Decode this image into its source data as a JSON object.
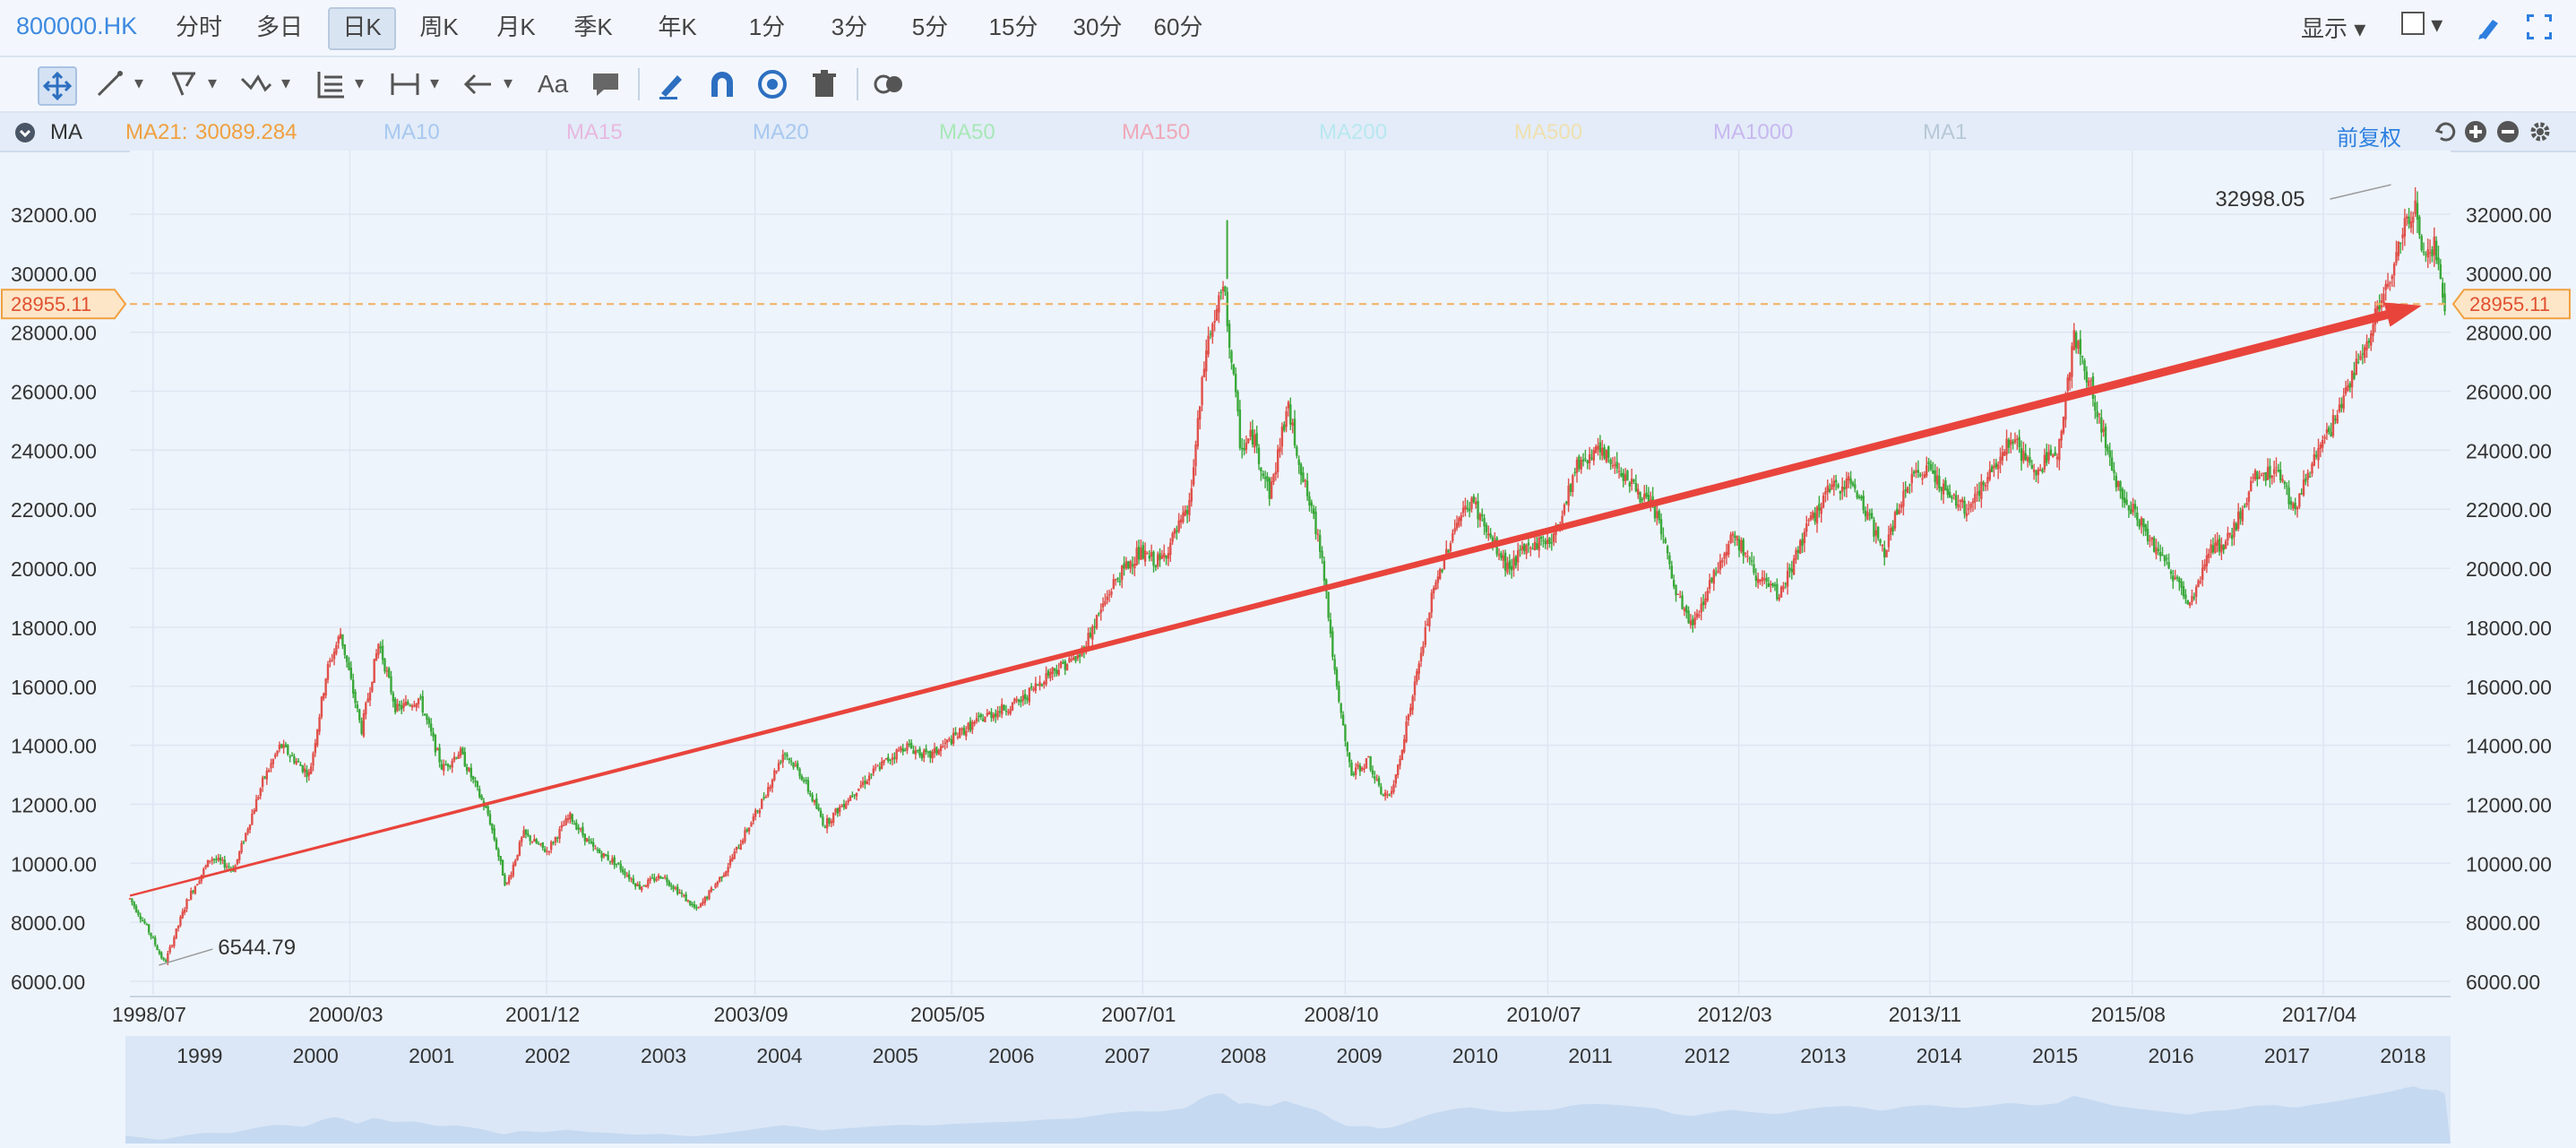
{
  "toolbar": {
    "symbol": "800000.HK",
    "tabs": [
      "分时",
      "多日",
      "日K",
      "周K",
      "月K",
      "季K",
      "年K",
      "1分",
      "3分",
      "5分",
      "15分",
      "30分",
      "60分"
    ],
    "active_tab": "日K",
    "display_label": "显示",
    "draw_tools": [
      "move-icon",
      "line-icon",
      "channel-icon",
      "wave-icon",
      "fib-icon",
      "measure-icon",
      "arrow-icon",
      "text-icon",
      "comment-icon",
      "pen-icon",
      "magnet-icon",
      "eye-icon",
      "trash-icon",
      "toggle-icon"
    ],
    "text_tool_label": "Aa"
  },
  "ma_bar": {
    "label": "MA",
    "ma21_label": "MA21:",
    "ma21_value": "30089.284",
    "inactive": [
      "MA10",
      "MA15",
      "MA20",
      "MA50",
      "MA150",
      "MA200",
      "MA500",
      "MA1000",
      "MA1"
    ],
    "adjust_label": "前复权",
    "colors": {
      "ma21": "#f0a040",
      "MA10": "#a8c8f0",
      "MA15": "#e8b8e0",
      "MA20": "#a8c8f0",
      "MA50": "#a8e8b8",
      "MA150": "#f0a8b8",
      "MA200": "#b8e8f0",
      "MA500": "#f0e0b0",
      "MA1000": "#c8b8f0",
      "MA1": "#b8c8d8"
    }
  },
  "chart_data": {
    "type": "candlestick",
    "y_ticks": [
      "32000.00",
      "30000.00",
      "28000.00",
      "26000.00",
      "24000.00",
      "22000.00",
      "20000.00",
      "18000.00",
      "16000.00",
      "14000.00",
      "12000.00",
      "10000.00",
      "8000.00",
      "6000.00"
    ],
    "ylim": [
      5800,
      33200
    ],
    "date_labels": [
      "1998/07",
      "2000/03",
      "2001/12",
      "2003/09",
      "2005/05",
      "2007/01",
      "2008/10",
      "2010/07",
      "2012/03",
      "2013/11",
      "2015/08",
      "2017/04"
    ],
    "year_labels": [
      "1999",
      "2000",
      "2001",
      "2002",
      "2003",
      "2004",
      "2005",
      "2006",
      "2007",
      "2008",
      "2009",
      "2010",
      "2011",
      "2012",
      "2013",
      "2014",
      "2015",
      "2016",
      "2017",
      "2018"
    ],
    "xlim": [
      1998.3,
      2018.35
    ],
    "current_price": "28955.11",
    "current_value": 28955.11,
    "max_annotation": {
      "label": "32998.05",
      "x": 2017.85,
      "value": 32998.05
    },
    "min_annotation": {
      "label": "6544.79",
      "x": 1998.55,
      "value": 6544.79
    },
    "trend_arrow": {
      "x1": 1998.3,
      "y1": 8900,
      "x2": 2018.1,
      "y2": 28900
    },
    "price_path": [
      [
        1998.3,
        8800
      ],
      [
        1998.45,
        7800
      ],
      [
        1998.6,
        6600
      ],
      [
        1998.8,
        8800
      ],
      [
        1999.0,
        10200
      ],
      [
        1999.2,
        9800
      ],
      [
        1999.45,
        12800
      ],
      [
        1999.6,
        14000
      ],
      [
        1999.85,
        13000
      ],
      [
        2000.0,
        16500
      ],
      [
        2000.12,
        17800
      ],
      [
        2000.3,
        14500
      ],
      [
        2000.45,
        17500
      ],
      [
        2000.6,
        15200
      ],
      [
        2000.8,
        15600
      ],
      [
        2001.0,
        13200
      ],
      [
        2001.15,
        13800
      ],
      [
        2001.4,
        11600
      ],
      [
        2001.55,
        9200
      ],
      [
        2001.7,
        11000
      ],
      [
        2001.9,
        10400
      ],
      [
        2002.1,
        11600
      ],
      [
        2002.3,
        10500
      ],
      [
        2002.5,
        10000
      ],
      [
        2002.7,
        9200
      ],
      [
        2002.9,
        9600
      ],
      [
        2003.2,
        8400
      ],
      [
        2003.45,
        9800
      ],
      [
        2003.75,
        12000
      ],
      [
        2003.95,
        13800
      ],
      [
        2004.1,
        13000
      ],
      [
        2004.3,
        11300
      ],
      [
        2004.55,
        12400
      ],
      [
        2004.75,
        13200
      ],
      [
        2005.0,
        14000
      ],
      [
        2005.2,
        13600
      ],
      [
        2005.5,
        14500
      ],
      [
        2005.7,
        15000
      ],
      [
        2006.0,
        15500
      ],
      [
        2006.25,
        16500
      ],
      [
        2006.5,
        17000
      ],
      [
        2006.8,
        19500
      ],
      [
        2007.0,
        20500
      ],
      [
        2007.2,
        20200
      ],
      [
        2007.45,
        22000
      ],
      [
        2007.6,
        27500
      ],
      [
        2007.75,
        29500
      ],
      [
        2007.9,
        24000
      ],
      [
        2008.0,
        24500
      ],
      [
        2008.15,
        22500
      ],
      [
        2008.3,
        25500
      ],
      [
        2008.45,
        22800
      ],
      [
        2008.6,
        20500
      ],
      [
        2008.72,
        16000
      ],
      [
        2008.85,
        13000
      ],
      [
        2009.0,
        13500
      ],
      [
        2009.1,
        12400
      ],
      [
        2009.2,
        12300
      ],
      [
        2009.4,
        16000
      ],
      [
        2009.55,
        19000
      ],
      [
        2009.75,
        21500
      ],
      [
        2009.9,
        22300
      ],
      [
        2010.05,
        21000
      ],
      [
        2010.2,
        20000
      ],
      [
        2010.4,
        20800
      ],
      [
        2010.6,
        21000
      ],
      [
        2010.8,
        23500
      ],
      [
        2010.95,
        24000
      ],
      [
        2011.15,
        23500
      ],
      [
        2011.35,
        22500
      ],
      [
        2011.5,
        21800
      ],
      [
        2011.65,
        19200
      ],
      [
        2011.8,
        18000
      ],
      [
        2011.95,
        19500
      ],
      [
        2012.15,
        21200
      ],
      [
        2012.35,
        19800
      ],
      [
        2012.55,
        19000
      ],
      [
        2012.75,
        21000
      ],
      [
        2012.95,
        22500
      ],
      [
        2013.15,
        23000
      ],
      [
        2013.3,
        22000
      ],
      [
        2013.45,
        20500
      ],
      [
        2013.65,
        22800
      ],
      [
        2013.85,
        23500
      ],
      [
        2014.0,
        22500
      ],
      [
        2014.15,
        22000
      ],
      [
        2014.35,
        23000
      ],
      [
        2014.55,
        24500
      ],
      [
        2014.75,
        23200
      ],
      [
        2014.95,
        24000
      ],
      [
        2015.1,
        27800
      ],
      [
        2015.25,
        26000
      ],
      [
        2015.45,
        23000
      ],
      [
        2015.6,
        22000
      ],
      [
        2015.75,
        21000
      ],
      [
        2016.0,
        19500
      ],
      [
        2016.1,
        18800
      ],
      [
        2016.25,
        20500
      ],
      [
        2016.45,
        21000
      ],
      [
        2016.65,
        23000
      ],
      [
        2016.85,
        23400
      ],
      [
        2017.0,
        22000
      ],
      [
        2017.15,
        23500
      ],
      [
        2017.35,
        25000
      ],
      [
        2017.55,
        27000
      ],
      [
        2017.7,
        28500
      ],
      [
        2017.85,
        30000
      ],
      [
        2017.95,
        31500
      ],
      [
        2018.05,
        32500
      ],
      [
        2018.12,
        30500
      ],
      [
        2018.22,
        31000
      ],
      [
        2018.3,
        29000
      ]
    ]
  }
}
